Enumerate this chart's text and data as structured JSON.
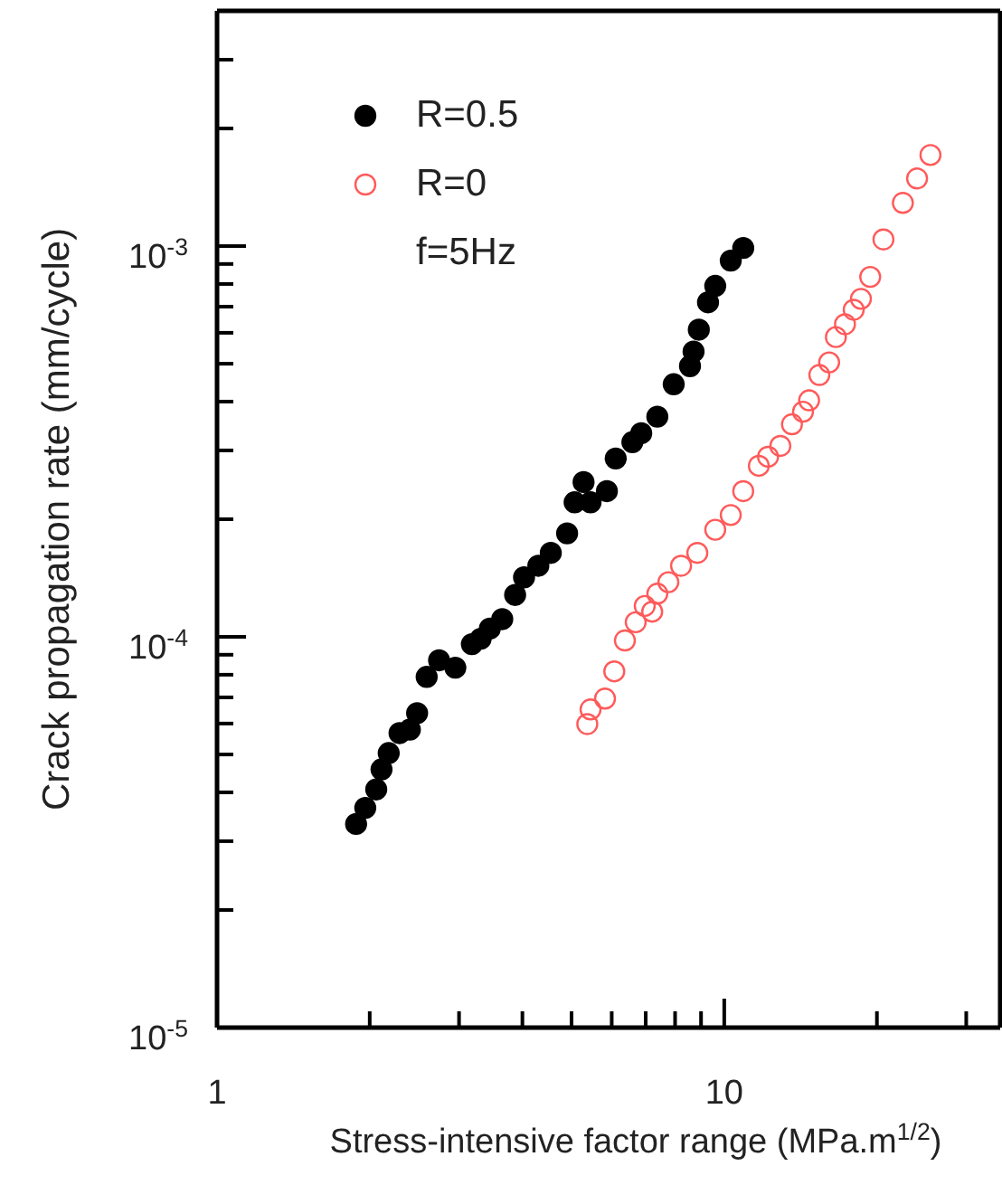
{
  "chart_data": {
    "type": "scatter",
    "xlabel": "Stress-intensive factor range (MPa.m$^{1/2}$)",
    "ylabel": "Crack propagation rate (mm/cycle)",
    "log": "xy",
    "xlim": [
      1,
      35
    ],
    "ylim": [
      1e-05,
      0.004
    ],
    "xticks": [
      {
        "value": 1,
        "label": "1"
      },
      {
        "value": 2,
        "label": null
      },
      {
        "value": 3,
        "label": null
      },
      {
        "value": 4,
        "label": null
      },
      {
        "value": 5,
        "label": null
      },
      {
        "value": 6,
        "label": null
      },
      {
        "value": 7,
        "label": null
      },
      {
        "value": 8,
        "label": null
      },
      {
        "value": 9,
        "label": null
      },
      {
        "value": 10,
        "label": "10"
      },
      {
        "value": 20,
        "label": null
      },
      {
        "value": 30,
        "label": null
      }
    ],
    "yticks": [
      {
        "value": 1e-05,
        "label": "10$^{-5}$"
      },
      {
        "value": 2e-05,
        "label": null
      },
      {
        "value": 3e-05,
        "label": null
      },
      {
        "value": 4e-05,
        "label": null
      },
      {
        "value": 5e-05,
        "label": null
      },
      {
        "value": 6e-05,
        "label": null
      },
      {
        "value": 7e-05,
        "label": null
      },
      {
        "value": 8e-05,
        "label": null
      },
      {
        "value": 9e-05,
        "label": null
      },
      {
        "value": 0.0001,
        "label": "10$^{-4}$"
      },
      {
        "value": 0.0002,
        "label": null
      },
      {
        "value": 0.0003,
        "label": null
      },
      {
        "value": 0.0004,
        "label": null
      },
      {
        "value": 0.0005,
        "label": null
      },
      {
        "value": 0.0006,
        "label": null
      },
      {
        "value": 0.0007,
        "label": null
      },
      {
        "value": 0.0008,
        "label": null
      },
      {
        "value": 0.0009,
        "label": null
      },
      {
        "value": 0.001,
        "label": "10$^{-3}$"
      },
      {
        "value": 0.002,
        "label": null
      },
      {
        "value": 0.003,
        "label": null
      }
    ],
    "legend": "top left",
    "grid": false,
    "annotations": [
      "f=5Hz"
    ],
    "series": [
      {
        "name": "R=0.5",
        "color": "#000000",
        "marker": "circle",
        "x": [
          1.88,
          1.96,
          2.06,
          2.11,
          2.18,
          2.29,
          2.4,
          2.48,
          2.59,
          2.74,
          2.95,
          3.18,
          3.31,
          3.45,
          3.65,
          3.87,
          4.03,
          4.3,
          4.55,
          4.9,
          5.07,
          5.28,
          5.45,
          5.87,
          6.11,
          6.59,
          6.86,
          7.38,
          7.95,
          8.56,
          8.7,
          8.91,
          9.29,
          9.6,
          10.3,
          10.9
        ],
        "values": [
          3.32e-05,
          3.65e-05,
          4.07e-05,
          4.58e-05,
          5.04e-05,
          5.67e-05,
          5.79e-05,
          6.38e-05,
          7.9e-05,
          8.71e-05,
          8.34e-05,
          9.58e-05,
          9.89e-05,
          0.000105,
          0.000111,
          0.000128,
          0.000142,
          0.000152,
          0.000164,
          0.000184,
          0.000221,
          0.000249,
          0.000221,
          0.000236,
          0.000286,
          0.000315,
          0.000332,
          0.000366,
          0.000443,
          0.000493,
          0.000537,
          0.000611,
          0.000718,
          0.000791,
          0.000918,
          0.000989
        ]
      },
      {
        "name": "R=0",
        "color": "#ff5a5a",
        "marker": "circle",
        "x": [
          5.37,
          5.45,
          5.82,
          6.07,
          6.37,
          6.69,
          6.97,
          7.21,
          7.38,
          7.76,
          8.22,
          8.85,
          9.6,
          10.3,
          10.9,
          11.7,
          12.2,
          12.9,
          13.6,
          14.3,
          14.7,
          15.4,
          16.1,
          16.6,
          17.3,
          18.0,
          18.6,
          19.4,
          20.6,
          22.5,
          24.0,
          25.5
        ],
        "values": [
          5.98e-05,
          6.52e-05,
          6.95e-05,
          8.16e-05,
          9.79e-05,
          0.000109,
          0.00012,
          0.000116,
          0.000129,
          0.000138,
          0.000152,
          0.000164,
          0.000188,
          0.000205,
          0.000236,
          0.000274,
          0.000289,
          0.000308,
          0.00035,
          0.000377,
          0.000403,
          0.000468,
          0.000504,
          0.000585,
          0.000631,
          0.000687,
          0.000733,
          0.000834,
          0.00104,
          0.00129,
          0.00149,
          0.00171
        ]
      }
    ]
  }
}
